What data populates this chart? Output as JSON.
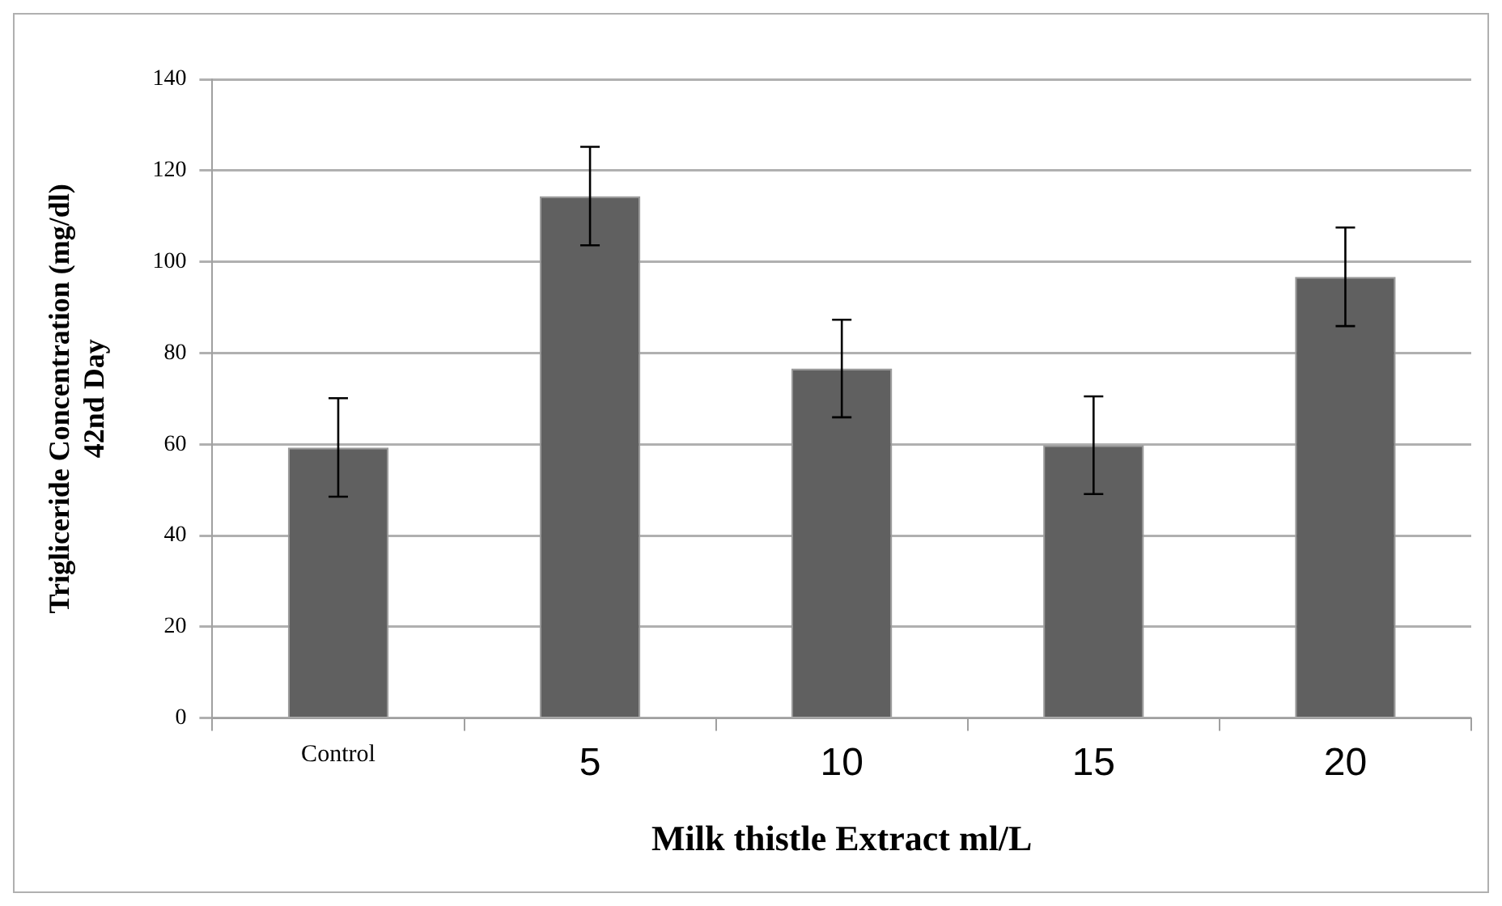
{
  "chart_data": {
    "type": "bar",
    "xlabel": "Milk thistle Extract ml/L",
    "ylabel": "Trigliceride Concentration (mg/dl)\n42nd Day",
    "categories": [
      "Control",
      "5",
      "10",
      "15",
      "20"
    ],
    "values": [
      59.3,
      114.4,
      76.6,
      59.8,
      96.7
    ],
    "errors": [
      10.8,
      10.8,
      10.7,
      10.7,
      10.8
    ],
    "color": "#606060",
    "ylim": [
      0,
      140
    ],
    "yticks": [
      0,
      20,
      40,
      60,
      80,
      100,
      120,
      140
    ],
    "grid": "y",
    "legend": false
  }
}
